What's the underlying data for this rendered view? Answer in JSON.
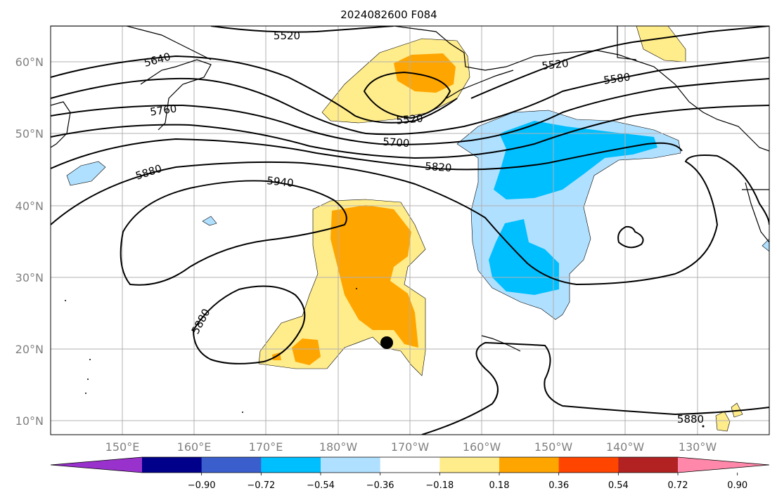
{
  "title": "2024082600 F084",
  "lat_labels": [
    "10°N",
    "20°N",
    "30°N",
    "40°N",
    "50°N",
    "60°N"
  ],
  "lon_labels": [
    "150°E",
    "160°E",
    "170°E",
    "180°W",
    "170°W",
    "160°W",
    "150°W",
    "140°W",
    "130°W"
  ],
  "colorbar": {
    "ticks": [
      "−0.90",
      "−0.72",
      "−0.54",
      "−0.36",
      "−0.18",
      "0.18",
      "0.36",
      "0.54",
      "0.72",
      "0.90"
    ],
    "colors": [
      "#9932cc",
      "#00008b",
      "#3a5fcd",
      "#00bfff",
      "#b0e0ff",
      "#ffffff",
      "#ffec8b",
      "#ffa500",
      "#ff4500",
      "#b22222",
      "#ff88aa"
    ]
  },
  "contour_labels": [
    "5520",
    "5640",
    "5520",
    "5580",
    "5760",
    "5520",
    "5700",
    "5820",
    "5880",
    "5940",
    "5880",
    "5880"
  ],
  "marker": "typhoon-center-dot"
}
